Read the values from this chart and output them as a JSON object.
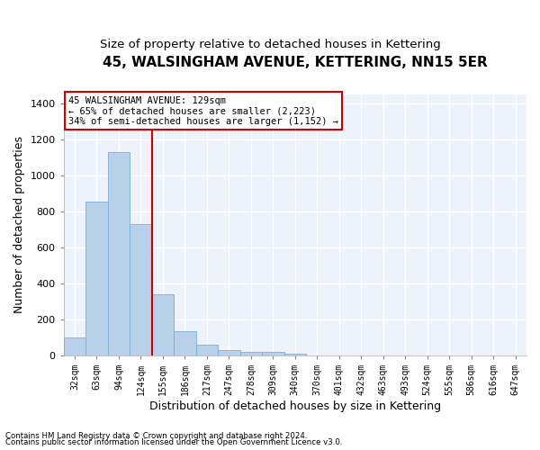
{
  "title": "45, WALSINGHAM AVENUE, KETTERING, NN15 5ER",
  "subtitle": "Size of property relative to detached houses in Kettering",
  "xlabel": "Distribution of detached houses by size in Kettering",
  "ylabel": "Number of detached properties",
  "categories": [
    "32sqm",
    "63sqm",
    "94sqm",
    "124sqm",
    "155sqm",
    "186sqm",
    "217sqm",
    "247sqm",
    "278sqm",
    "309sqm",
    "340sqm",
    "370sqm",
    "401sqm",
    "432sqm",
    "463sqm",
    "493sqm",
    "524sqm",
    "555sqm",
    "586sqm",
    "616sqm",
    "647sqm"
  ],
  "values": [
    100,
    855,
    1130,
    730,
    340,
    135,
    60,
    30,
    20,
    18,
    10,
    0,
    0,
    0,
    0,
    0,
    0,
    0,
    0,
    0,
    0
  ],
  "bar_color": "#b8d0ea",
  "bar_edge_color": "#7aafd4",
  "vline_x": 3.5,
  "vline_color": "#cc0000",
  "ylim": [
    0,
    1450
  ],
  "yticks": [
    0,
    200,
    400,
    600,
    800,
    1000,
    1200,
    1400
  ],
  "annotation_text": "45 WALSINGHAM AVENUE: 129sqm\n← 65% of detached houses are smaller (2,223)\n34% of semi-detached houses are larger (1,152) →",
  "annotation_box_color": "#cc0000",
  "footnote1": "Contains HM Land Registry data © Crown copyright and database right 2024.",
  "footnote2": "Contains public sector information licensed under the Open Government Licence v3.0.",
  "title_fontsize": 11,
  "subtitle_fontsize": 9.5,
  "xlabel_fontsize": 9,
  "ylabel_fontsize": 9,
  "bg_color": "#eef2fa",
  "grid_color": "#d0d8e8"
}
